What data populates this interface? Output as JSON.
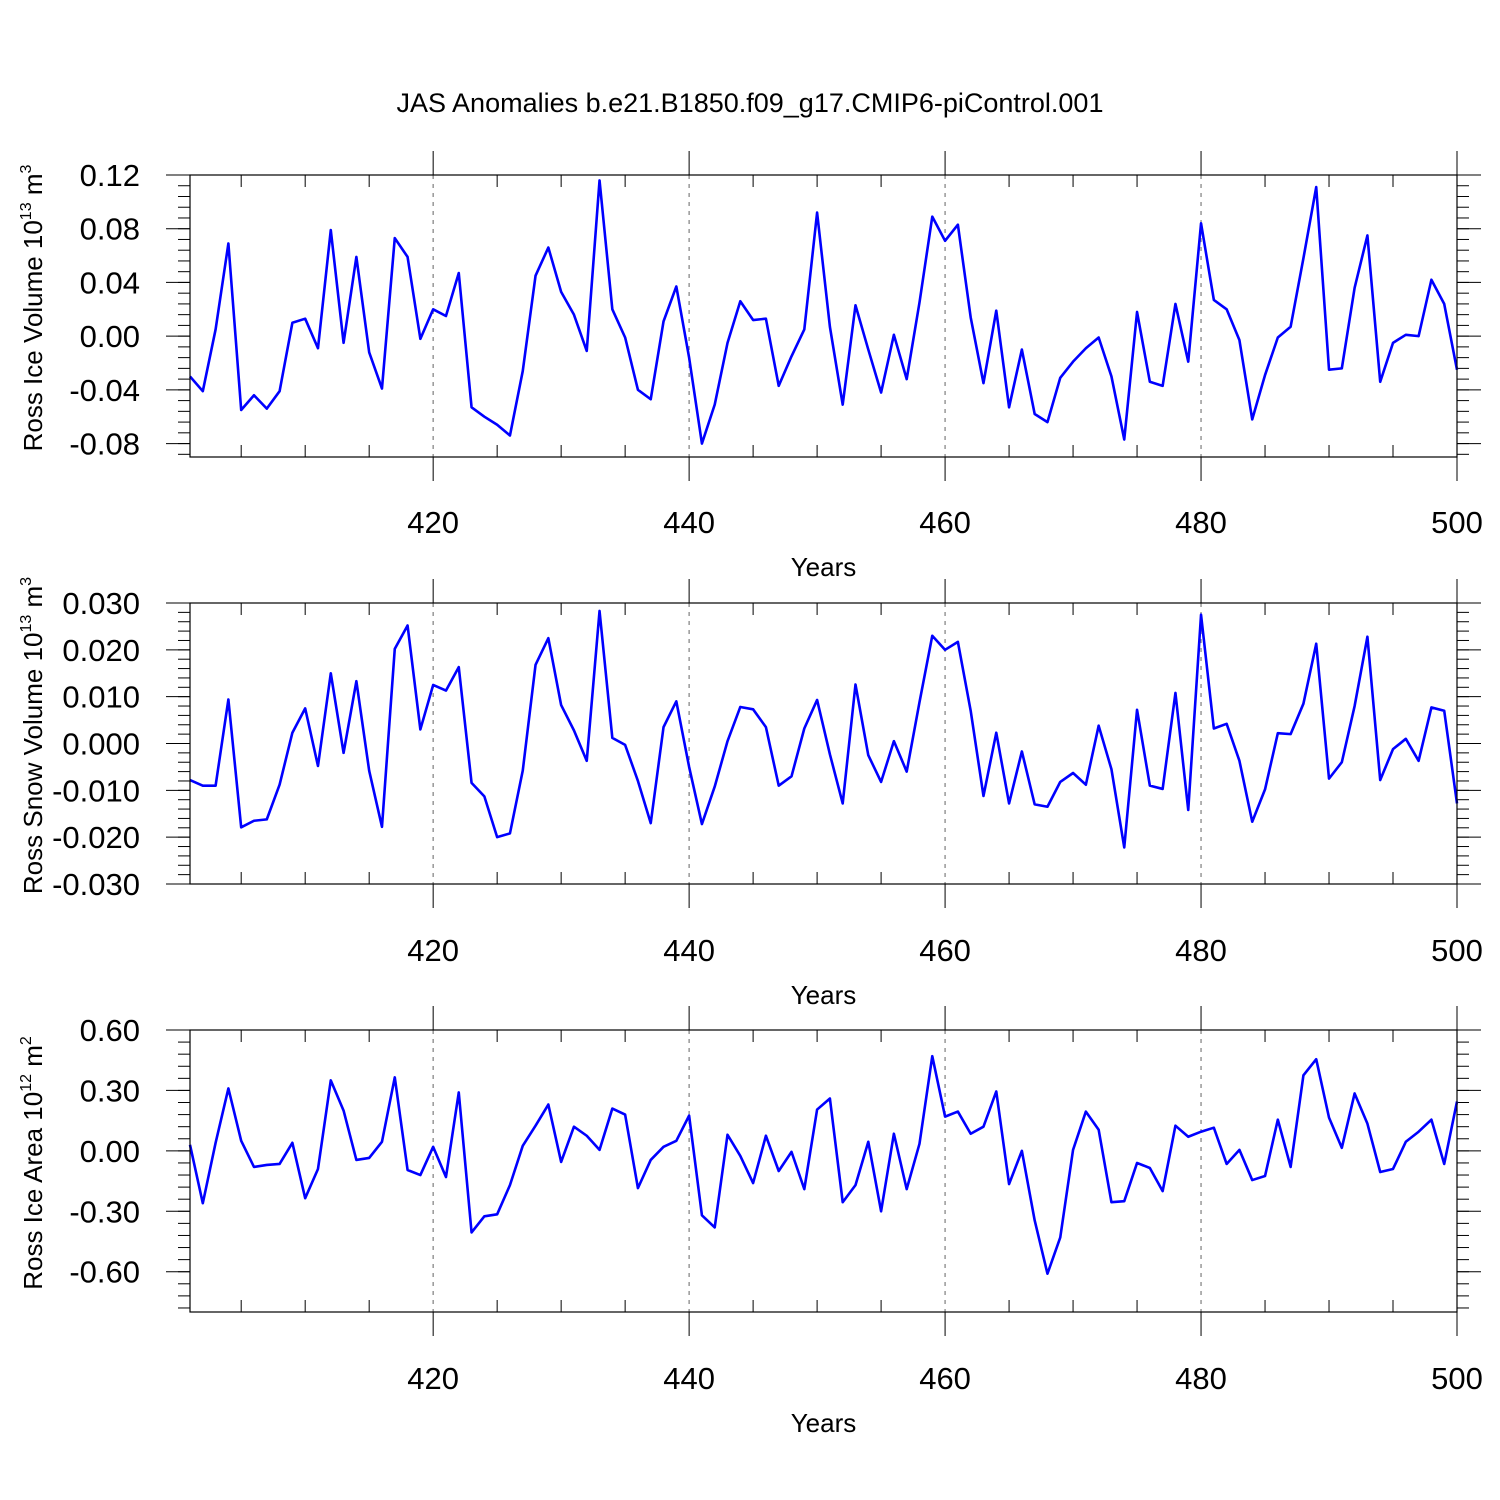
{
  "title": "JAS Anomalies b.e21.B1850.f09_g17.CMIP6-piControl.001",
  "chart_data": [
    {
      "type": "line",
      "xlabel": "Years",
      "ylabel": {
        "text": "Ross Ice Volume 10",
        "exp": "13",
        "unit": " m",
        "unit_exp": "3"
      },
      "xlim": [
        401,
        500
      ],
      "ylim": [
        -0.09,
        0.12
      ],
      "xticks": [
        420,
        440,
        460,
        480,
        500
      ],
      "xtick_labels": [
        "420",
        "440",
        "460",
        "480",
        "500"
      ],
      "yticks": [
        -0.08,
        -0.04,
        0.0,
        0.04,
        0.08,
        0.12
      ],
      "ytick_labels": [
        "-0.08",
        "-0.04",
        "0.00",
        "0.04",
        "0.08",
        "0.12"
      ],
      "color": "#0000ff",
      "grid": "dashed vertical at major x ticks",
      "x_start": 401,
      "values": [
        -0.03,
        -0.041,
        0.005,
        0.069,
        -0.055,
        -0.044,
        -0.054,
        -0.041,
        0.01,
        0.013,
        -0.009,
        0.079,
        -0.005,
        0.059,
        -0.012,
        -0.039,
        0.073,
        0.059,
        -0.002,
        0.02,
        0.015,
        0.047,
        -0.053,
        -0.06,
        -0.066,
        -0.074,
        -0.026,
        0.045,
        0.066,
        0.033,
        0.016,
        -0.011,
        0.116,
        0.02,
        -0.001,
        -0.04,
        -0.047,
        0.011,
        0.037,
        -0.016,
        -0.08,
        -0.051,
        -0.005,
        0.026,
        0.012,
        0.013,
        -0.037,
        -0.015,
        0.005,
        0.092,
        0.007,
        -0.051,
        0.023,
        -0.01,
        -0.042,
        0.001,
        -0.032,
        0.025,
        0.089,
        0.071,
        0.083,
        0.014,
        -0.035,
        0.019,
        -0.053,
        -0.01,
        -0.058,
        -0.064,
        -0.031,
        -0.019,
        -0.009,
        -0.001,
        -0.03,
        -0.077,
        0.018,
        -0.034,
        -0.037,
        0.024,
        -0.019,
        0.084,
        0.027,
        0.02,
        -0.003,
        -0.062,
        -0.029,
        -0.001,
        0.007,
        0.058,
        0.111,
        -0.025,
        -0.024,
        0.036,
        0.075,
        -0.034,
        -0.005,
        0.001,
        0.0,
        0.042,
        0.024,
        -0.025
      ]
    },
    {
      "type": "line",
      "xlabel": "Years",
      "ylabel": {
        "text": "Ross Snow Volume 10",
        "exp": "13",
        "unit": " m",
        "unit_exp": "3"
      },
      "xlim": [
        401,
        500
      ],
      "ylim": [
        -0.03,
        0.03
      ],
      "xticks": [
        420,
        440,
        460,
        480,
        500
      ],
      "xtick_labels": [
        "420",
        "440",
        "460",
        "480",
        "500"
      ],
      "yticks": [
        -0.03,
        -0.02,
        -0.01,
        0.0,
        0.01,
        0.02,
        0.03
      ],
      "ytick_labels": [
        "-0.030",
        "-0.020",
        "-0.010",
        "0.000",
        "0.010",
        "0.020",
        "0.030"
      ],
      "color": "#0000ff",
      "grid": "dashed vertical at major x ticks",
      "x_start": 401,
      "values": [
        -0.0078,
        -0.009,
        -0.009,
        0.0094,
        -0.0179,
        -0.0165,
        -0.0162,
        -0.0088,
        0.0023,
        0.0075,
        -0.0048,
        0.015,
        -0.002,
        0.0133,
        -0.0058,
        -0.0178,
        0.0202,
        0.0252,
        0.003,
        0.0125,
        0.0113,
        0.0163,
        -0.0084,
        -0.0113,
        -0.02,
        -0.0192,
        -0.0058,
        0.0168,
        0.0225,
        0.0082,
        0.0028,
        -0.0037,
        0.0283,
        0.0012,
        -0.0003,
        -0.008,
        -0.017,
        0.0035,
        0.009,
        -0.005,
        -0.0172,
        -0.0092,
        0.0005,
        0.0078,
        0.0073,
        0.0035,
        -0.009,
        -0.007,
        0.0032,
        0.0093,
        -0.0023,
        -0.0128,
        0.0126,
        -0.0025,
        -0.0082,
        0.0005,
        -0.006,
        0.0088,
        0.023,
        0.02,
        0.0217,
        0.007,
        -0.0112,
        0.0023,
        -0.0128,
        -0.0017,
        -0.013,
        -0.0135,
        -0.0082,
        -0.0063,
        -0.0088,
        0.0038,
        -0.0055,
        -0.0222,
        0.0072,
        -0.009,
        -0.0097,
        0.0108,
        -0.0142,
        0.0275,
        0.0032,
        0.0042,
        -0.0037,
        -0.0167,
        -0.0098,
        0.0022,
        0.002,
        0.0085,
        0.0213,
        -0.0075,
        -0.004,
        0.008,
        0.0228,
        -0.0078,
        -0.0012,
        0.001,
        -0.0037,
        0.0077,
        0.007,
        -0.0128
      ]
    },
    {
      "type": "line",
      "xlabel": "Years",
      "ylabel": {
        "text": "Ross Ice Area 10",
        "exp": "12",
        "unit": " m",
        "unit_exp": "2"
      },
      "xlim": [
        401,
        500
      ],
      "ylim": [
        -0.8,
        0.6
      ],
      "xticks": [
        420,
        440,
        460,
        480,
        500
      ],
      "xtick_labels": [
        "420",
        "440",
        "460",
        "480",
        "500"
      ],
      "yticks": [
        -0.6,
        -0.3,
        0.0,
        0.3,
        0.6
      ],
      "ytick_labels": [
        "-0.60",
        "-0.30",
        "0.00",
        "0.30",
        "0.60"
      ],
      "color": "#0000ff",
      "grid": "dashed vertical at major x ticks",
      "x_start": 401,
      "values": [
        0.03,
        -0.26,
        0.04,
        0.31,
        0.05,
        -0.08,
        -0.07,
        -0.065,
        0.04,
        -0.235,
        -0.09,
        0.35,
        0.2,
        -0.045,
        -0.035,
        0.045,
        0.365,
        -0.095,
        -0.12,
        0.02,
        -0.13,
        0.29,
        -0.405,
        -0.325,
        -0.315,
        -0.17,
        0.025,
        0.125,
        0.23,
        -0.055,
        0.12,
        0.075,
        0.005,
        0.21,
        0.18,
        -0.185,
        -0.045,
        0.02,
        0.05,
        0.175,
        -0.32,
        -0.38,
        0.08,
        -0.025,
        -0.16,
        0.075,
        -0.1,
        -0.005,
        -0.19,
        0.205,
        0.26,
        -0.255,
        -0.17,
        0.045,
        -0.3,
        0.085,
        -0.19,
        0.035,
        0.47,
        0.17,
        0.195,
        0.085,
        0.12,
        0.295,
        -0.165,
        0.0,
        -0.345,
        -0.61,
        -0.43,
        0.005,
        0.195,
        0.105,
        -0.255,
        -0.25,
        -0.06,
        -0.085,
        -0.2,
        0.125,
        0.07,
        0.095,
        0.115,
        -0.065,
        0.005,
        -0.145,
        -0.125,
        0.155,
        -0.08,
        0.375,
        0.455,
        0.165,
        0.015,
        0.285,
        0.135,
        -0.105,
        -0.09,
        0.045,
        0.095,
        0.155,
        -0.065,
        0.245
      ]
    }
  ]
}
